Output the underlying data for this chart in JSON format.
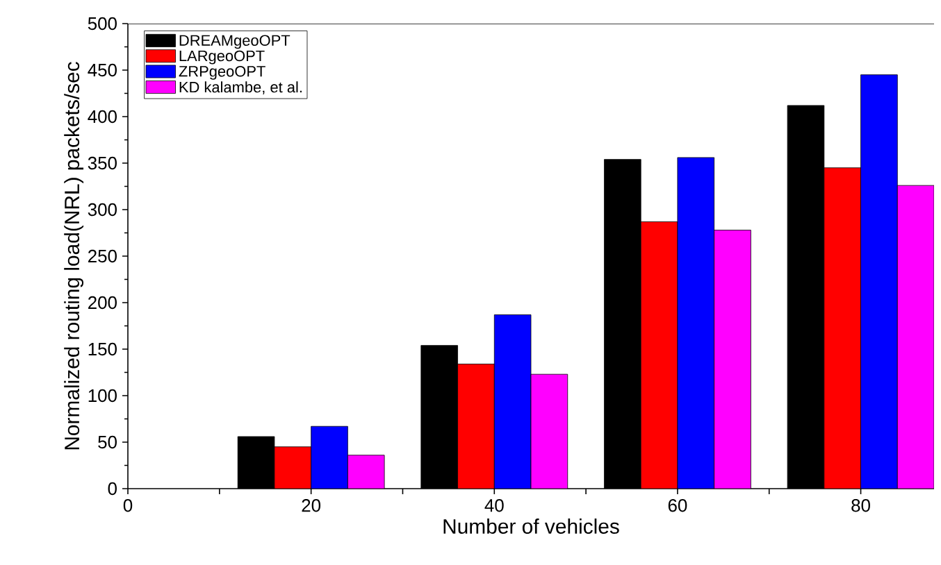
{
  "chart_data": {
    "type": "bar",
    "xlabel": "Number of vehicles",
    "ylabel": "Normalized routing load(NRL) packets/sec",
    "x": [
      20,
      40,
      60,
      80
    ],
    "series": [
      {
        "name": "DREAMgeoOPT",
        "color": "#000000",
        "values": [
          56,
          154,
          354,
          412
        ]
      },
      {
        "name": "LARgeoOPT",
        "color": "#ff0000",
        "values": [
          45,
          134,
          287,
          345
        ]
      },
      {
        "name": "ZRPgeoOPT",
        "color": "#0000ff",
        "values": [
          67,
          187,
          356,
          445
        ]
      },
      {
        "name": "KD kalambe, et al.",
        "color": "#ff00ff",
        "values": [
          36,
          123,
          278,
          326
        ]
      }
    ],
    "xlim": [
      0,
      88
    ],
    "ylim": [
      0,
      500
    ],
    "xticks": [
      0,
      {
        "value": 10,
        "label": null
      },
      20,
      {
        "value": 30,
        "label": null
      },
      40,
      {
        "value": 50,
        "label": null
      },
      60,
      {
        "value": 70,
        "label": null
      },
      80
    ],
    "yticks": [
      0,
      50,
      100,
      150,
      200,
      250,
      300,
      350,
      400,
      450,
      500
    ],
    "legend": "top left",
    "grid": false
  }
}
